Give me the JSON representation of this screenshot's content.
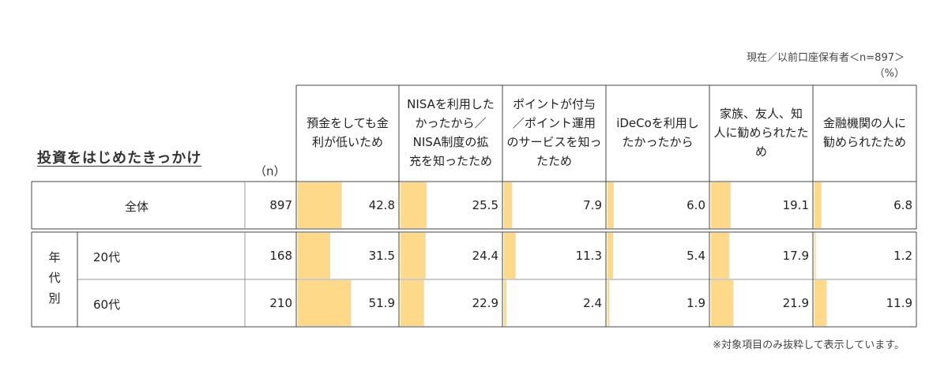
{
  "note": {
    "base": "現在／以前口座保有者＜n=897＞",
    "unit": "（%）",
    "footnote": "※対象項目のみ抜粋して表示しています。"
  },
  "table": {
    "title": "投資をはじめたきっかけ",
    "n_header": "（n）",
    "group_label": [
      "年",
      "代",
      "別"
    ]
  },
  "colors": {
    "bar": "#FFD98A",
    "border": "#444444",
    "grid": "#9a9a9a"
  },
  "chart_data": {
    "type": "bar",
    "title": "投資をはじめたきっかけ",
    "unit": "%",
    "categories": [
      "預金をしても金利が低いため",
      "NISAを利用したかったから／NISA制度の拡充を知ったため",
      "ポイントが付与／ポイント運用のサービスを知ったため",
      "iDeCoを利用したかったから",
      "家族、友人、知人に勧められたため",
      "金融機関の人に勧められたため"
    ],
    "header_lines": [
      [
        "預金をしても金",
        "利が低いため"
      ],
      [
        "NISAを利用した",
        "かったから／",
        "NISA制度の拡",
        "充を知ったため"
      ],
      [
        "ポイントが付与",
        "／ポイント運用",
        "のサービスを知っ",
        "たため"
      ],
      [
        "iDeCoを利用し",
        "たかったから"
      ],
      [
        "家族、友人、知",
        "人に勧められたた",
        "め"
      ],
      [
        "金融機関の人に",
        "勧められたため"
      ]
    ],
    "series": [
      {
        "name": "全体",
        "n": 897,
        "values": [
          42.8,
          25.5,
          7.9,
          6.0,
          19.1,
          6.8
        ]
      },
      {
        "name": "20代",
        "n": 168,
        "values": [
          31.5,
          24.4,
          11.3,
          5.4,
          17.9,
          1.2
        ]
      },
      {
        "name": "60代",
        "n": 210,
        "values": [
          51.9,
          22.9,
          2.4,
          1.9,
          21.9,
          11.9
        ]
      }
    ],
    "xlim": [
      0,
      100
    ]
  }
}
